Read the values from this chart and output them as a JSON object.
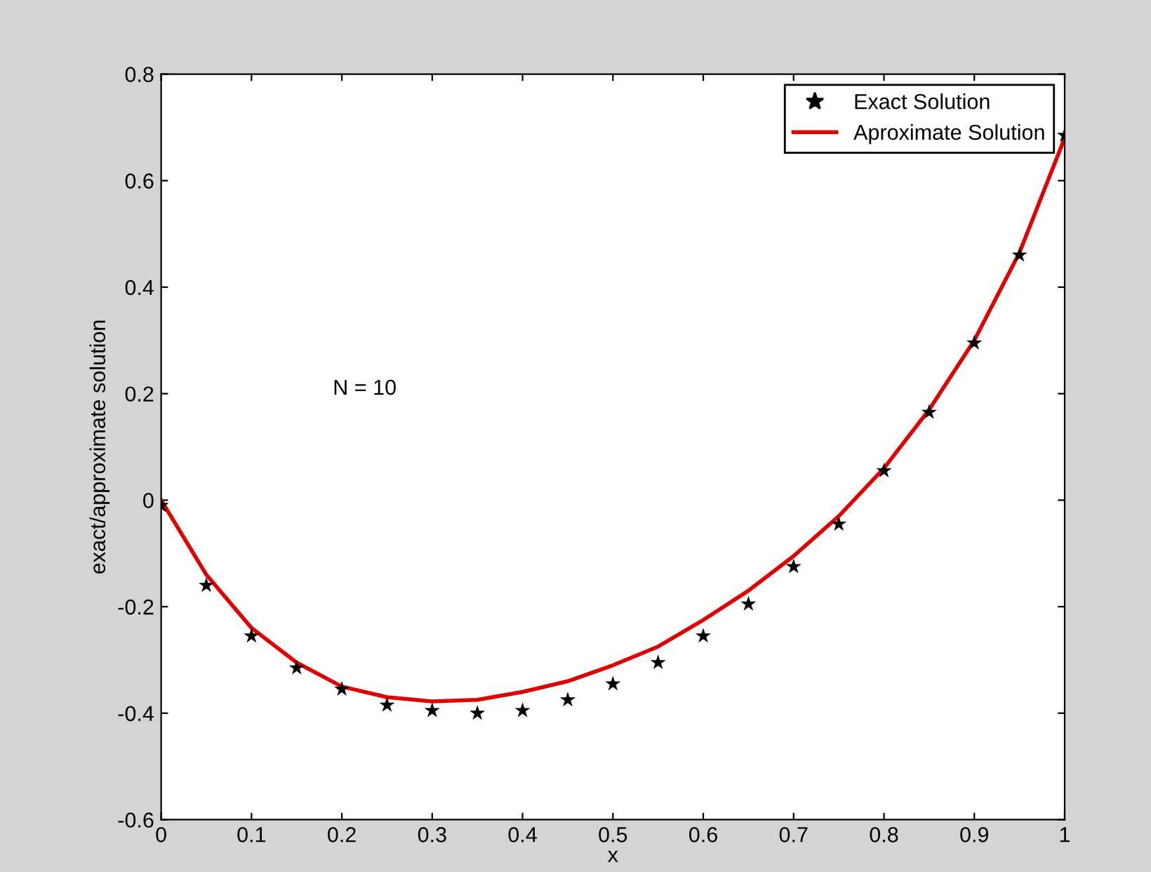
{
  "chart_data": {
    "type": "scatter",
    "xlabel": "x",
    "ylabel": "exact/approximate solution",
    "annotations": [
      "N = 10"
    ],
    "x": [
      0,
      0.05,
      0.1,
      0.15,
      0.2,
      0.25,
      0.3,
      0.35,
      0.4,
      0.45,
      0.5,
      0.55,
      0.6,
      0.65,
      0.7,
      0.75,
      0.8,
      0.85,
      0.9,
      0.95,
      1
    ],
    "series": [
      {
        "name": "Exact Solution",
        "color": "#000000",
        "marker": "star",
        "values": [
          -0.01,
          -0.16,
          -0.255,
          -0.315,
          -0.355,
          -0.385,
          -0.395,
          -0.4,
          -0.395,
          -0.375,
          -0.345,
          -0.305,
          -0.255,
          -0.195,
          -0.125,
          -0.045,
          0.055,
          0.165,
          0.295,
          0.46,
          0.685
        ]
      },
      {
        "name": "Aproximate Solution",
        "type": "line",
        "color": "#e00000",
        "line_style": "solid",
        "values": [
          0,
          -0.14,
          -0.24,
          -0.305,
          -0.35,
          -0.37,
          -0.378,
          -0.375,
          -0.36,
          -0.34,
          -0.31,
          -0.275,
          -0.225,
          -0.17,
          -0.105,
          -0.03,
          0.06,
          0.17,
          0.3,
          0.465,
          0.68
        ]
      }
    ],
    "xlim": [
      0,
      1
    ],
    "xticks": [
      0,
      0.1,
      0.2,
      0.3,
      0.4,
      0.5,
      0.6,
      0.7,
      0.8,
      0.9,
      1
    ],
    "ylim": [
      -0.6,
      0.8
    ],
    "yticks": [
      -0.6,
      -0.4,
      -0.2,
      0,
      0.2,
      0.4,
      0.6,
      0.8
    ],
    "grid": false,
    "legend": "top right"
  }
}
